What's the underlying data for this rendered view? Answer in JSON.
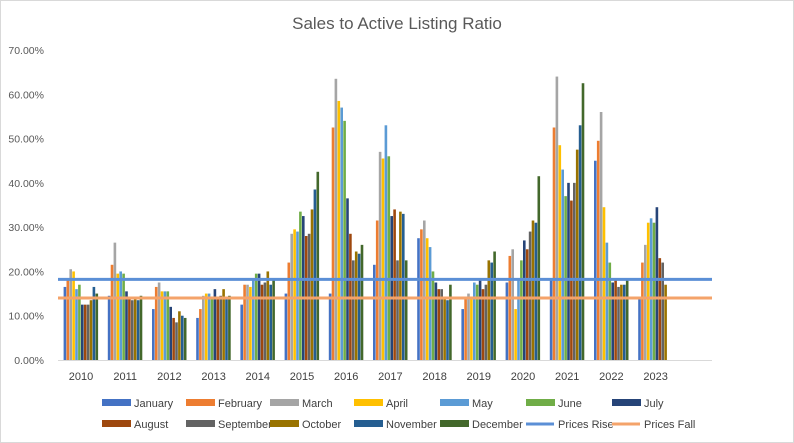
{
  "chart_data": {
    "type": "bar",
    "title": "Sales to Active Listing Ratio",
    "xlabel": "",
    "ylabel": "",
    "categories": [
      "2010",
      "2011",
      "2012",
      "2013",
      "2014",
      "2015",
      "2016",
      "2017",
      "2018",
      "2019",
      "2020",
      "2021",
      "2022",
      "2023"
    ],
    "yticks": [
      "0.00%",
      "10.00%",
      "20.00%",
      "30.00%",
      "40.00%",
      "50.00%",
      "60.00%",
      "70.00%"
    ],
    "ylim": [
      0,
      70
    ],
    "grid": false,
    "legend_position": "bottom",
    "series": [
      {
        "name": "January",
        "color": "#4472C4",
        "values": [
          16.5,
          14.5,
          11.5,
          9.5,
          12.5,
          15,
          15,
          21.5,
          27.5,
          11.5,
          17.5,
          18,
          45,
          14
        ]
      },
      {
        "name": "February",
        "color": "#ED7D31",
        "values": [
          18.5,
          21.5,
          16.5,
          11.5,
          17,
          22,
          52.5,
          31.5,
          29.5,
          14,
          23.5,
          52.5,
          49.5,
          22
        ]
      },
      {
        "name": "March",
        "color": "#A5A5A5",
        "values": [
          20.5,
          26.5,
          17.5,
          14.5,
          17,
          28.5,
          63.5,
          47,
          31.5,
          15,
          25,
          64,
          56,
          26
        ]
      },
      {
        "name": "April",
        "color": "#FFC000",
        "values": [
          20,
          19.5,
          15.5,
          15,
          16.5,
          29.5,
          58.5,
          45.5,
          27.5,
          14,
          11.5,
          48.5,
          34.5,
          31
        ]
      },
      {
        "name": "May",
        "color": "#5B9BD5",
        "values": [
          16,
          20,
          15.5,
          15,
          18,
          29,
          57,
          53,
          25.5,
          17.5,
          18,
          43,
          26.5,
          32
        ]
      },
      {
        "name": "June",
        "color": "#70AD47",
        "values": [
          17,
          19.5,
          15.5,
          14,
          19.5,
          33.5,
          54,
          46,
          20,
          17,
          22.5,
          37,
          22,
          31
        ]
      },
      {
        "name": "July",
        "color": "#264478",
        "values": [
          12.5,
          15.5,
          12,
          16,
          19.5,
          32.5,
          36.5,
          32.5,
          17.5,
          18,
          27,
          40,
          17.5,
          34.5
        ]
      },
      {
        "name": "August",
        "color": "#9E480E",
        "values": [
          12.5,
          14,
          9.5,
          14,
          17,
          28,
          28.5,
          34,
          16,
          16,
          25,
          36,
          18,
          23
        ]
      },
      {
        "name": "September",
        "color": "#636363",
        "values": [
          12.5,
          13.5,
          8.5,
          14.5,
          17.5,
          28.5,
          22.5,
          22.5,
          16,
          17,
          29,
          40,
          16.5,
          22
        ]
      },
      {
        "name": "October",
        "color": "#997300",
        "values": [
          13.5,
          14,
          11,
          16,
          20,
          34,
          24.5,
          33.5,
          14,
          22.5,
          31.5,
          47.5,
          17,
          17
        ]
      },
      {
        "name": "November",
        "color": "#255E91",
        "values": [
          16.5,
          13.5,
          10,
          14,
          17,
          38.5,
          24,
          33,
          13.5,
          22,
          31,
          53,
          17,
          null
        ]
      },
      {
        "name": "December",
        "color": "#43682B",
        "values": [
          15,
          14.5,
          9.5,
          14.5,
          18.5,
          42.5,
          26,
          22.5,
          17,
          24.5,
          41.5,
          62.5,
          18,
          null
        ]
      }
    ],
    "reference_lines": [
      {
        "name": "Prices Rise",
        "color": "#5B8FD6",
        "value": 18.2
      },
      {
        "name": "Prices Fall",
        "color": "#F4A36A",
        "value": 14.0
      }
    ]
  }
}
